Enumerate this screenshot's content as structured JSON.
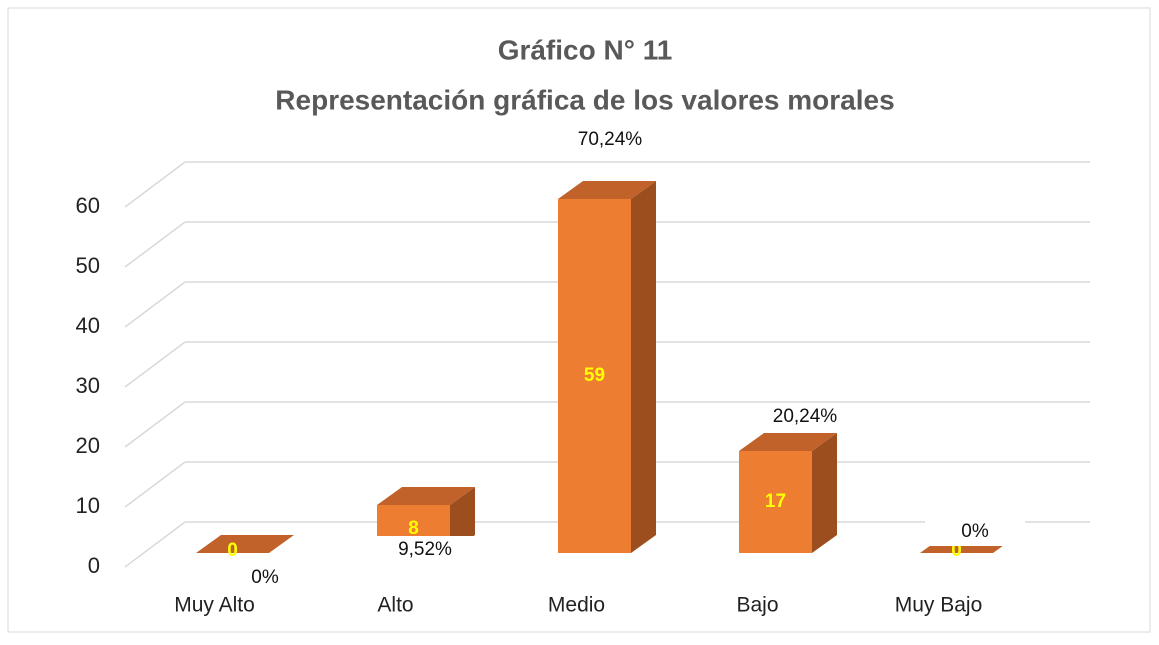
{
  "chart_data": {
    "type": "bar3d",
    "title": "Gráfico N°  11",
    "subtitle": "Representación gráfica de los valores  morales",
    "categories": [
      "Muy Alto",
      "Alto",
      "Medio",
      "Bajo",
      "Muy Bajo"
    ],
    "values": [
      0,
      8,
      59,
      17,
      0
    ],
    "percent_labels": [
      "0%",
      "9,52%",
      "70,24%",
      "20,24%",
      "0%"
    ],
    "color": "#ed7d31",
    "ylim": [
      0,
      60
    ],
    "yticks": [
      0,
      10,
      20,
      30,
      40,
      50,
      60
    ],
    "grid": true
  }
}
